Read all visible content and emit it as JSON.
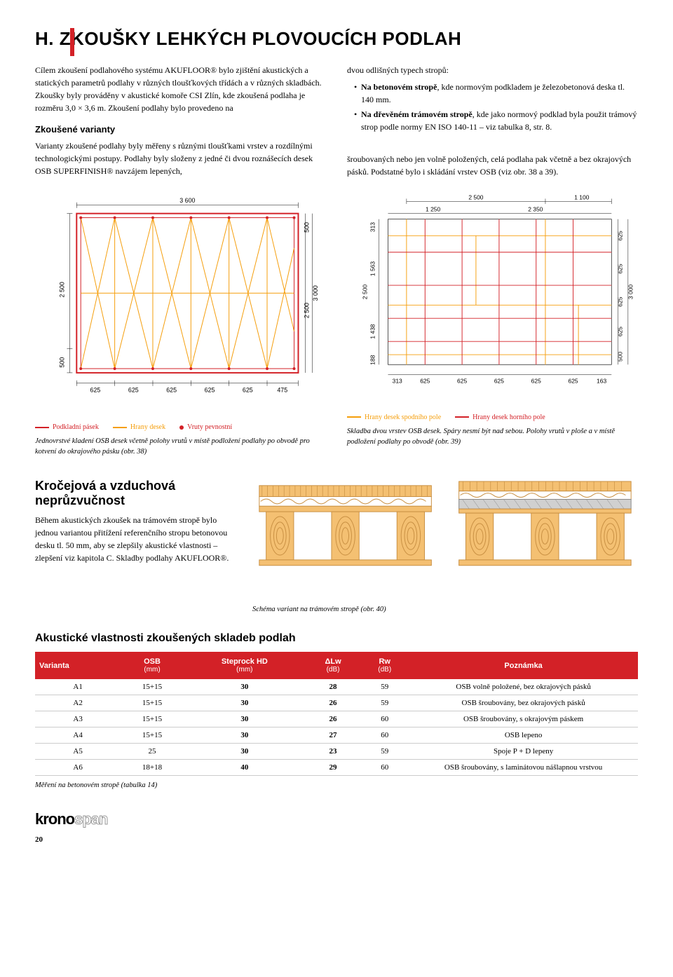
{
  "title": "H. ZKOUŠKY LEHKÝCH PLOVOUCÍCH PODLAH",
  "intro": {
    "left_p1": "Cílem zkoušení podlahového systému AKUFLOOR® bylo zjištění akustických a statických parametrů podlahy v různých tloušťkových třídách a v různých skladbách. Zkoušky byly prováděny v akustické komoře CSI Zlín, kde zkoušená podlaha je rozměru 3,0 × 3,6 m. Zkoušení podlahy bylo provedeno na",
    "right_p1_intro": "dvou odlišných typech stropů:",
    "right_li1_bold": "Na betonovém stropě",
    "right_li1_rest": ", kde normovým podkladem je železobetonová deska tl. 140 mm.",
    "right_li2_bold": "Na dřevěném trámovém stropě",
    "right_li2_rest": ", kde jako normový podklad byla použit trámový strop podle normy EN ISO 140-11 – viz tabulka 8, str. 8.",
    "variants_head": "Zkoušené varianty",
    "variants_left": "Varianty zkoušené podlahy byly měřeny s různými tloušťkami vrstev a rozdílnými technologickými postupy. Podlahy byly složeny z jedné či dvou roznášecích desek OSB SUPERFINISH® navzájem lepených,",
    "variants_right": "šroubovaných nebo jen volně položených, celá podlaha pak včetně a bez okrajových pásků. Podstatné bylo i skládání vrstev OSB (viz obr. 38 a 39)."
  },
  "diagram1": {
    "top_dim": "3 600",
    "left_v1": "2 500",
    "left_v2": "500",
    "right_v1": "500",
    "right_v2": "2 500",
    "right_v3": "3 000",
    "bottom": [
      "625",
      "625",
      "625",
      "625",
      "625",
      "475"
    ],
    "legend1": "Podkladní pásek",
    "legend1_color": "#d32127",
    "legend2": "Hrany desek",
    "legend2_color": "#f59e0b",
    "legend3": "Vruty pevnostní",
    "legend3_color": "#d32127",
    "caption": "Jednovrstvé kladení OSB desek včetně polohy vrutů v místě podložení podlahy po obvodě pro kotvení do okrajového pásku (obr. 38)"
  },
  "diagram2": {
    "top_right1": "2 500",
    "top_right2": "1 100",
    "top_inner1": "1 250",
    "top_inner2": "2 350",
    "left": [
      "313",
      "1 563",
      "2 500",
      "1 438",
      "188"
    ],
    "right": [
      "625",
      "625",
      "625",
      "625",
      "500"
    ],
    "right_outer": "3 000",
    "bottom": [
      "313",
      "625",
      "625",
      "625",
      "625",
      "625",
      "163"
    ],
    "legend1": "Hrany desek spodního pole",
    "legend1_color": "#f59e0b",
    "legend2": "Hrany desek horního pole",
    "legend2_color": "#d32127",
    "caption": "Skladba dvou vrstev OSB desek. Spáry nesmí být nad sebou. Polohy vrutů v ploše a v místě podložení podlahy po obvodě (obr. 39)"
  },
  "section2": {
    "title": "Kročejová a vzduchová neprůzvučnost",
    "text": "Během akustických zkoušek na trámovém stropě bylo jednou variantou přitížení referenčního stropu betonovou desku tl. 50 mm, aby se zlepšily akustické vlastnosti – zlepšení viz kapitola C. Skladby podlahy AKUFLOOR®.",
    "caption": "Schéma variant na trámovém stropě (obr. 40)"
  },
  "table": {
    "title": "Akustické vlastnosti zkoušených skladeb podlah",
    "headers": {
      "c1": "Varianta",
      "c2": "OSB",
      "c2u": "(mm)",
      "c3": "Steprock HD",
      "c3u": "(mm)",
      "c4": "ΔLw",
      "c4u": "(dB)",
      "c5": "Rw",
      "c5u": "(dB)",
      "c6": "Poznámka"
    },
    "rows": [
      [
        "A1",
        "15+15",
        "30",
        "28",
        "59",
        "OSB volně položené, bez okrajových pásků"
      ],
      [
        "A2",
        "15+15",
        "30",
        "26",
        "59",
        "OSB šroubovány, bez okrajových pásků"
      ],
      [
        "A3",
        "15+15",
        "30",
        "26",
        "60",
        "OSB šroubovány, s okrajovým páskem"
      ],
      [
        "A4",
        "15+15",
        "30",
        "27",
        "60",
        "OSB lepeno"
      ],
      [
        "A5",
        "25",
        "30",
        "23",
        "59",
        "Spoje P + D lepeny"
      ],
      [
        "A6",
        "18+18",
        "40",
        "29",
        "60",
        "OSB šroubovány, s laminátovou nášlapnou vrstvou"
      ]
    ],
    "caption": "Měření na betonovém stropě (tabulka 14)"
  },
  "logo1": "krono",
  "logo2": "span",
  "page": "20",
  "colors": {
    "red": "#d32127",
    "orange": "#f59e0b",
    "wood": "#e8a857",
    "wood_dark": "#c9924a",
    "gray": "#b0b0b0"
  }
}
